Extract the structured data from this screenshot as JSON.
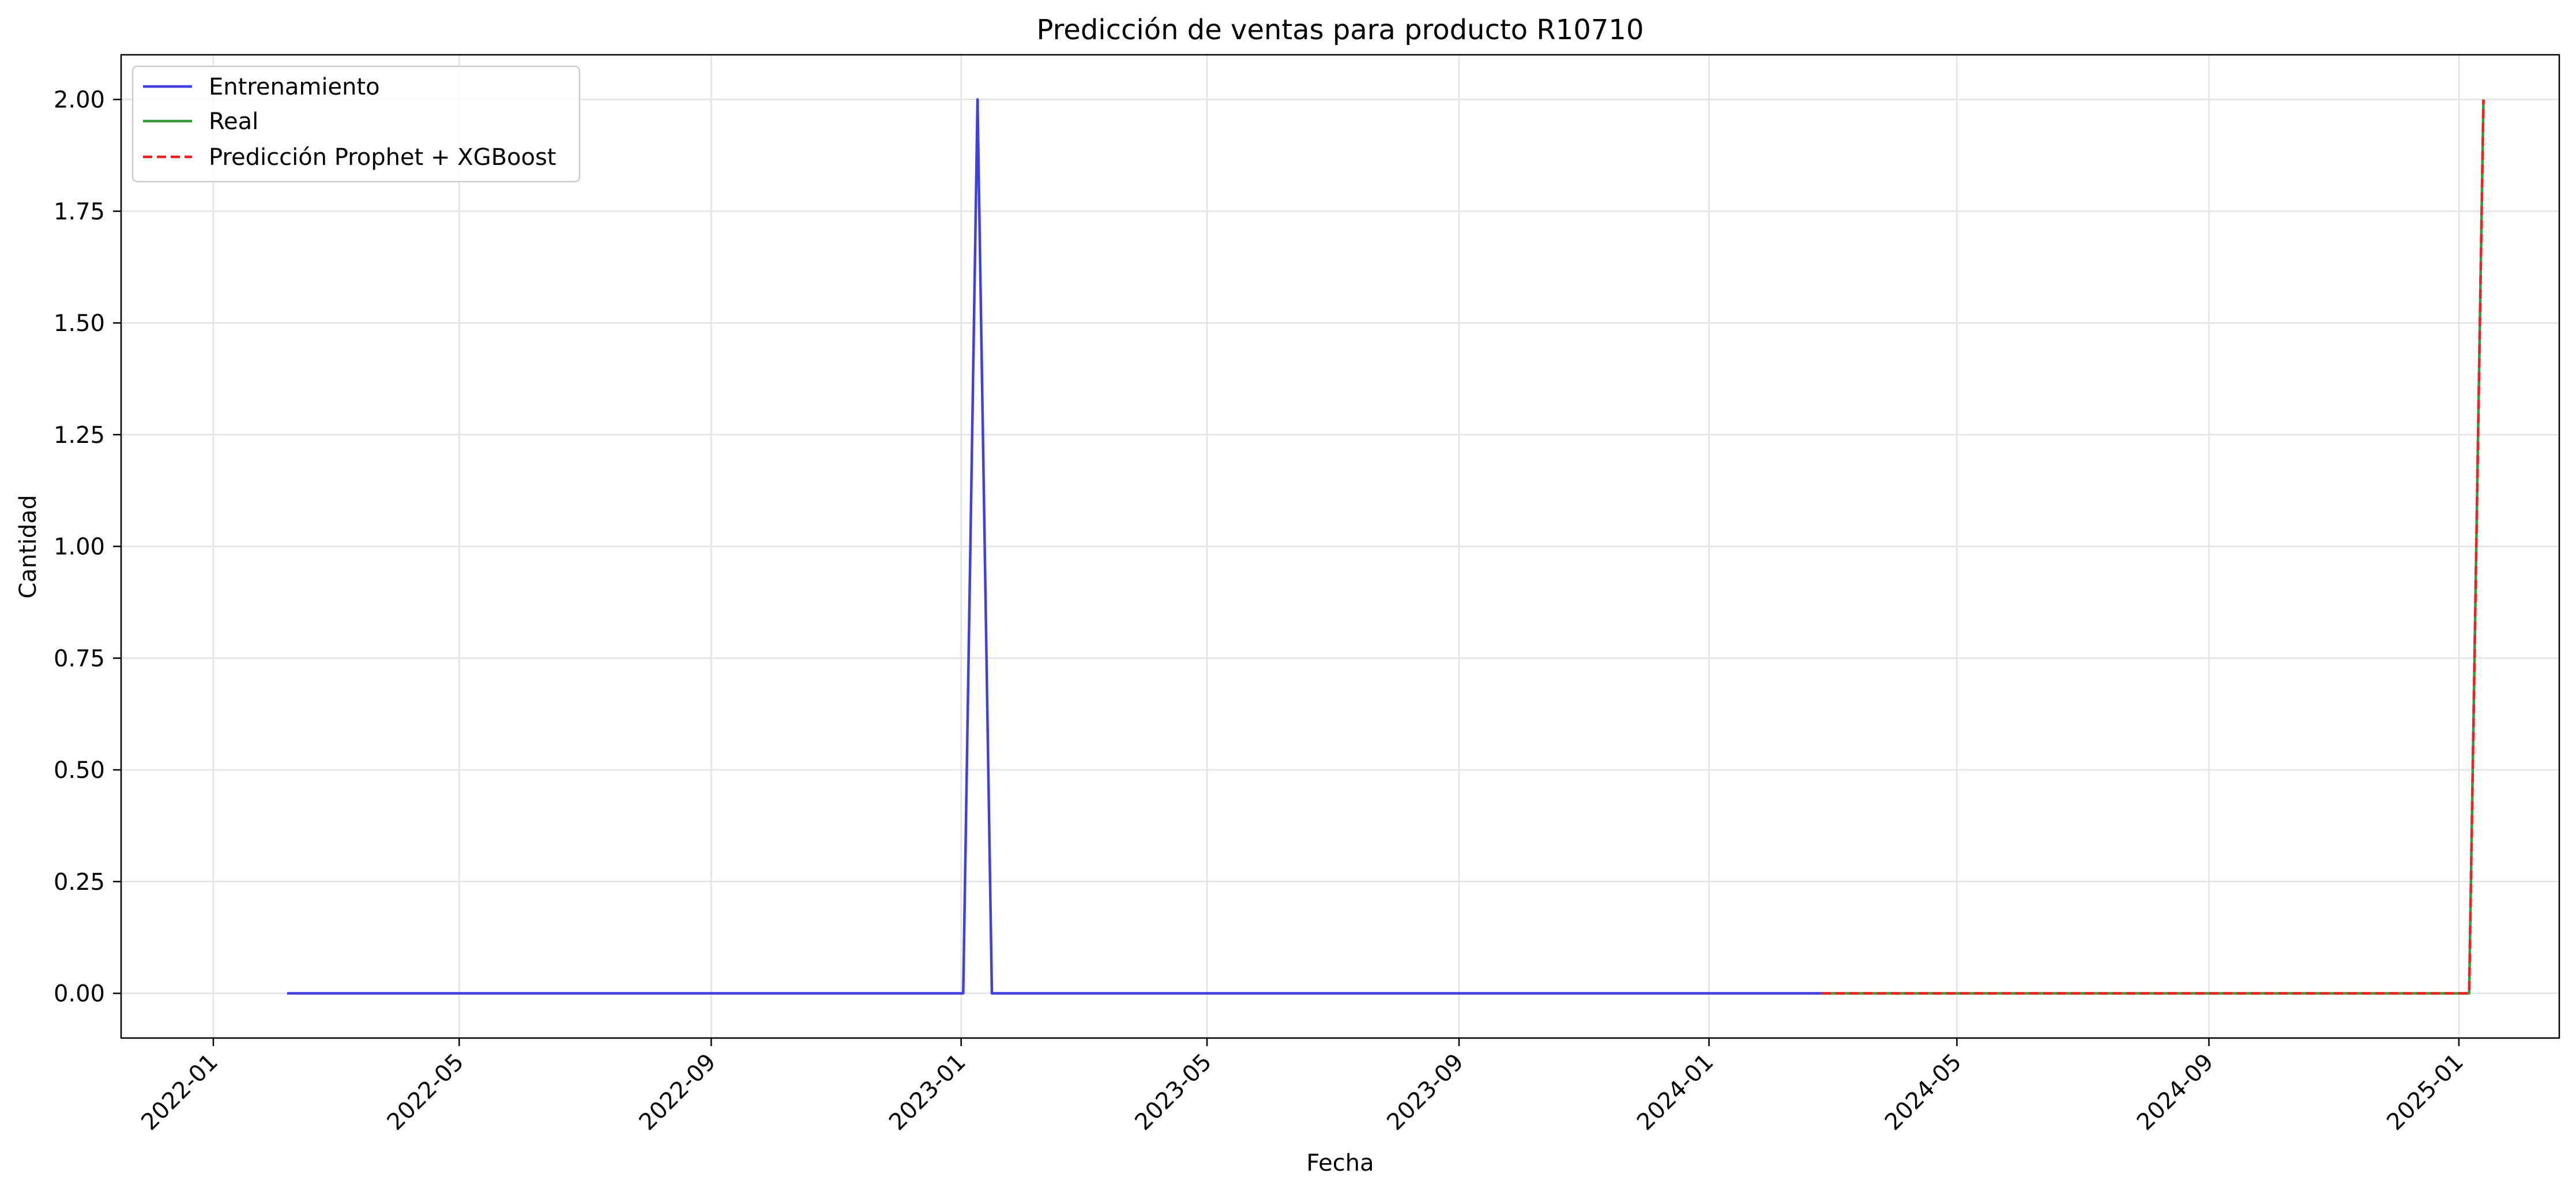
{
  "chart_data": {
    "type": "line",
    "title": "Predicción de ventas para producto R10710",
    "xlabel": "Fecha",
    "ylabel": "Cantidad",
    "x_axis": {
      "scale": "date",
      "range": [
        "2021-11-17",
        "2025-02-19"
      ],
      "ticks": [
        "2022-01",
        "2022-05",
        "2022-09",
        "2023-01",
        "2023-05",
        "2023-09",
        "2024-01",
        "2024-05",
        "2024-09",
        "2025-01"
      ],
      "tick_rotation": 45
    },
    "y_axis": {
      "range": [
        -0.1,
        2.1
      ],
      "ticks": [
        "0.00",
        "0.25",
        "0.50",
        "0.75",
        "1.00",
        "1.25",
        "1.50",
        "1.75",
        "2.00"
      ]
    },
    "grid": true,
    "legend": {
      "placement": "top-left"
    },
    "series": [
      {
        "name": "Entrenamiento",
        "color": "#4040e0",
        "style": "solid",
        "points": [
          [
            "2022-02-06",
            0
          ],
          [
            "2023-01-02",
            0
          ],
          [
            "2023-01-09",
            2
          ],
          [
            "2023-01-16",
            0
          ],
          [
            "2024-02-25",
            0
          ]
        ]
      },
      {
        "name": "Real",
        "color": "#3a9a3a",
        "style": "solid",
        "points": [
          [
            "2024-02-25",
            0
          ],
          [
            "2025-01-06",
            0
          ],
          [
            "2025-01-13",
            2
          ]
        ]
      },
      {
        "name": "Predicción Prophet + XGBoost",
        "color": "#ee2222",
        "style": "dashed",
        "points": [
          [
            "2024-02-25",
            0
          ],
          [
            "2025-01-06",
            0
          ],
          [
            "2025-01-13",
            2
          ]
        ]
      }
    ]
  }
}
